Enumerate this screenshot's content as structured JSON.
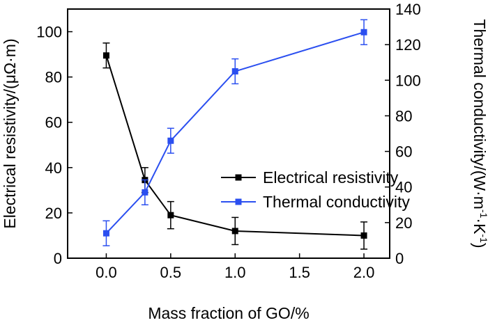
{
  "chart_data": {
    "type": "line",
    "xlabel": "Mass fraction of GO/%",
    "ylabel_left_main": "Electrical resistivity/(μΩ·m)",
    "ylabel_right_prefix": "Thermal conductivity/(W·m",
    "ylabel_right_exp1": "-1",
    "ylabel_right_mid": "·K",
    "ylabel_right_exp2": "-1",
    "ylabel_right_suffix": ")",
    "xlim": [
      -0.3,
      2.2
    ],
    "x_ticks": [
      "0.0",
      "0.5",
      "1.0",
      "1.5",
      "2.0"
    ],
    "x_tick_values": [
      0,
      0.5,
      1.0,
      1.5,
      2.0
    ],
    "ylim_left": [
      0,
      110
    ],
    "y_left_ticks": [
      "0",
      "20",
      "40",
      "60",
      "80",
      "100"
    ],
    "y_left_tick_values": [
      0,
      20,
      40,
      60,
      80,
      100
    ],
    "ylim_right": [
      0,
      140
    ],
    "y_right_ticks": [
      "0",
      "20",
      "40",
      "60",
      "80",
      "100",
      "120",
      "140"
    ],
    "y_right_tick_values": [
      0,
      20,
      40,
      60,
      80,
      100,
      120,
      140
    ],
    "grid": false,
    "legend_position": "center-right",
    "x": [
      0,
      0.3,
      0.5,
      1.0,
      2.0
    ],
    "series": [
      {
        "name": "Electrical resistivity",
        "axis": "left",
        "color": "#000000",
        "values": [
          89.5,
          34.5,
          19,
          12,
          10
        ],
        "errors": [
          5.5,
          5.5,
          6,
          6,
          6
        ]
      },
      {
        "name": "Thermal conductivity",
        "axis": "right",
        "color": "#2b4ff0",
        "values": [
          14,
          37,
          66,
          105,
          127
        ],
        "errors": [
          7,
          7,
          7,
          7,
          7
        ]
      }
    ]
  }
}
